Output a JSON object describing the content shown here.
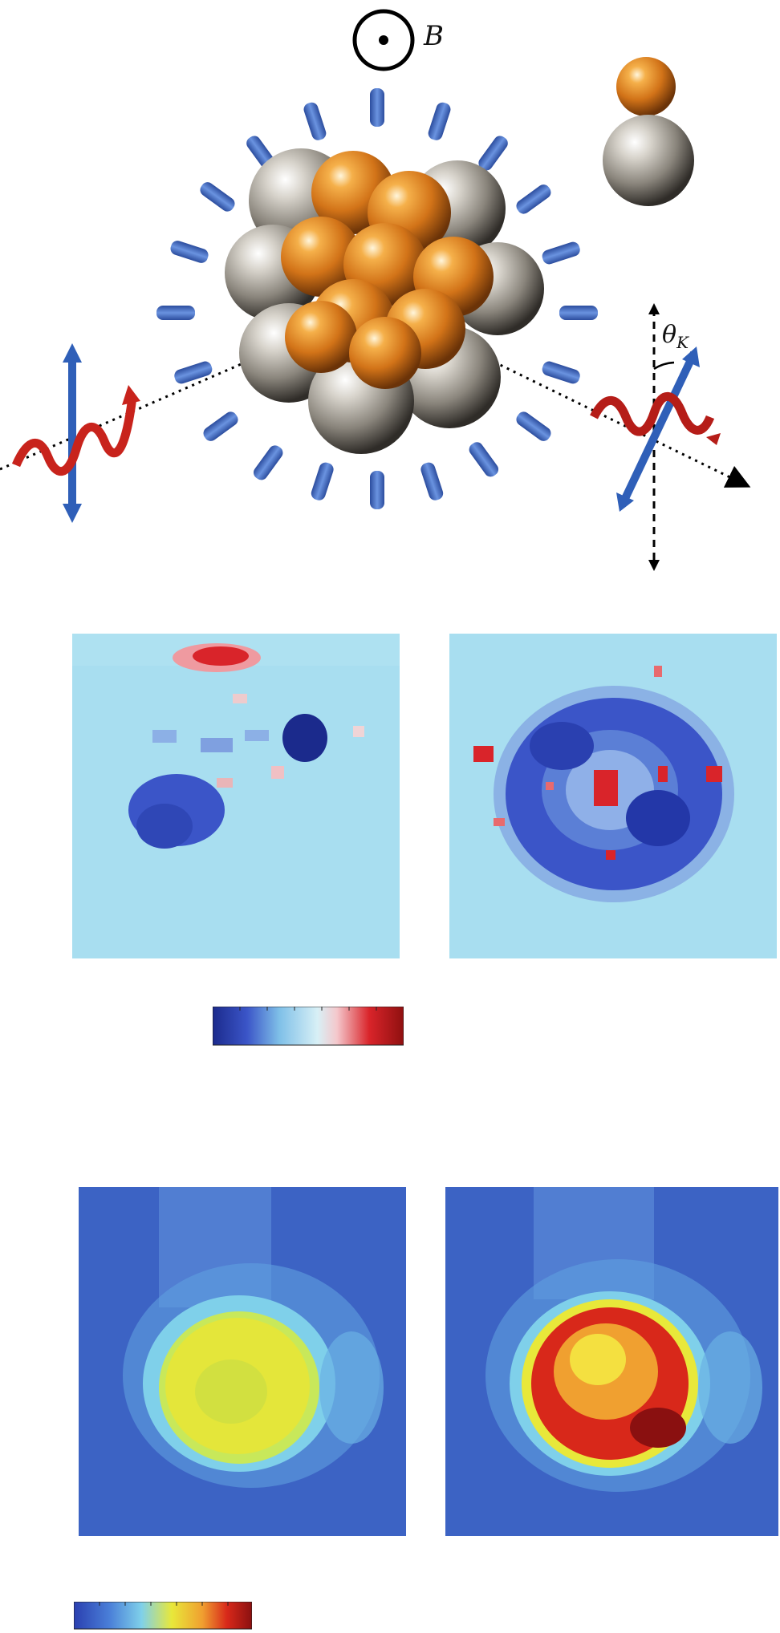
{
  "diagram": {
    "magnetic_field_label": "B",
    "kerr_angle_label": "θ",
    "kerr_angle_subscript": "K",
    "particle_legend": [
      "gold-sphere",
      "silver-sphere"
    ]
  },
  "maps_top": {
    "colormap": "blue-cyan-white-red",
    "colors": {
      "dark_blue": "#1b2a8c",
      "blue": "#3b55c8",
      "cyan": "#a8def0",
      "white": "#eef3f6",
      "red": "#d9242a",
      "dark_red": "#8f1010"
    }
  },
  "maps_bottom": {
    "colormap": "jet",
    "colors": {
      "dark_blue": "#2a3fb0",
      "blue": "#4a7fd8",
      "cyan": "#7fd0ea",
      "yellow": "#e8e83a",
      "red": "#d8281a",
      "dark_red": "#8a1010"
    }
  }
}
